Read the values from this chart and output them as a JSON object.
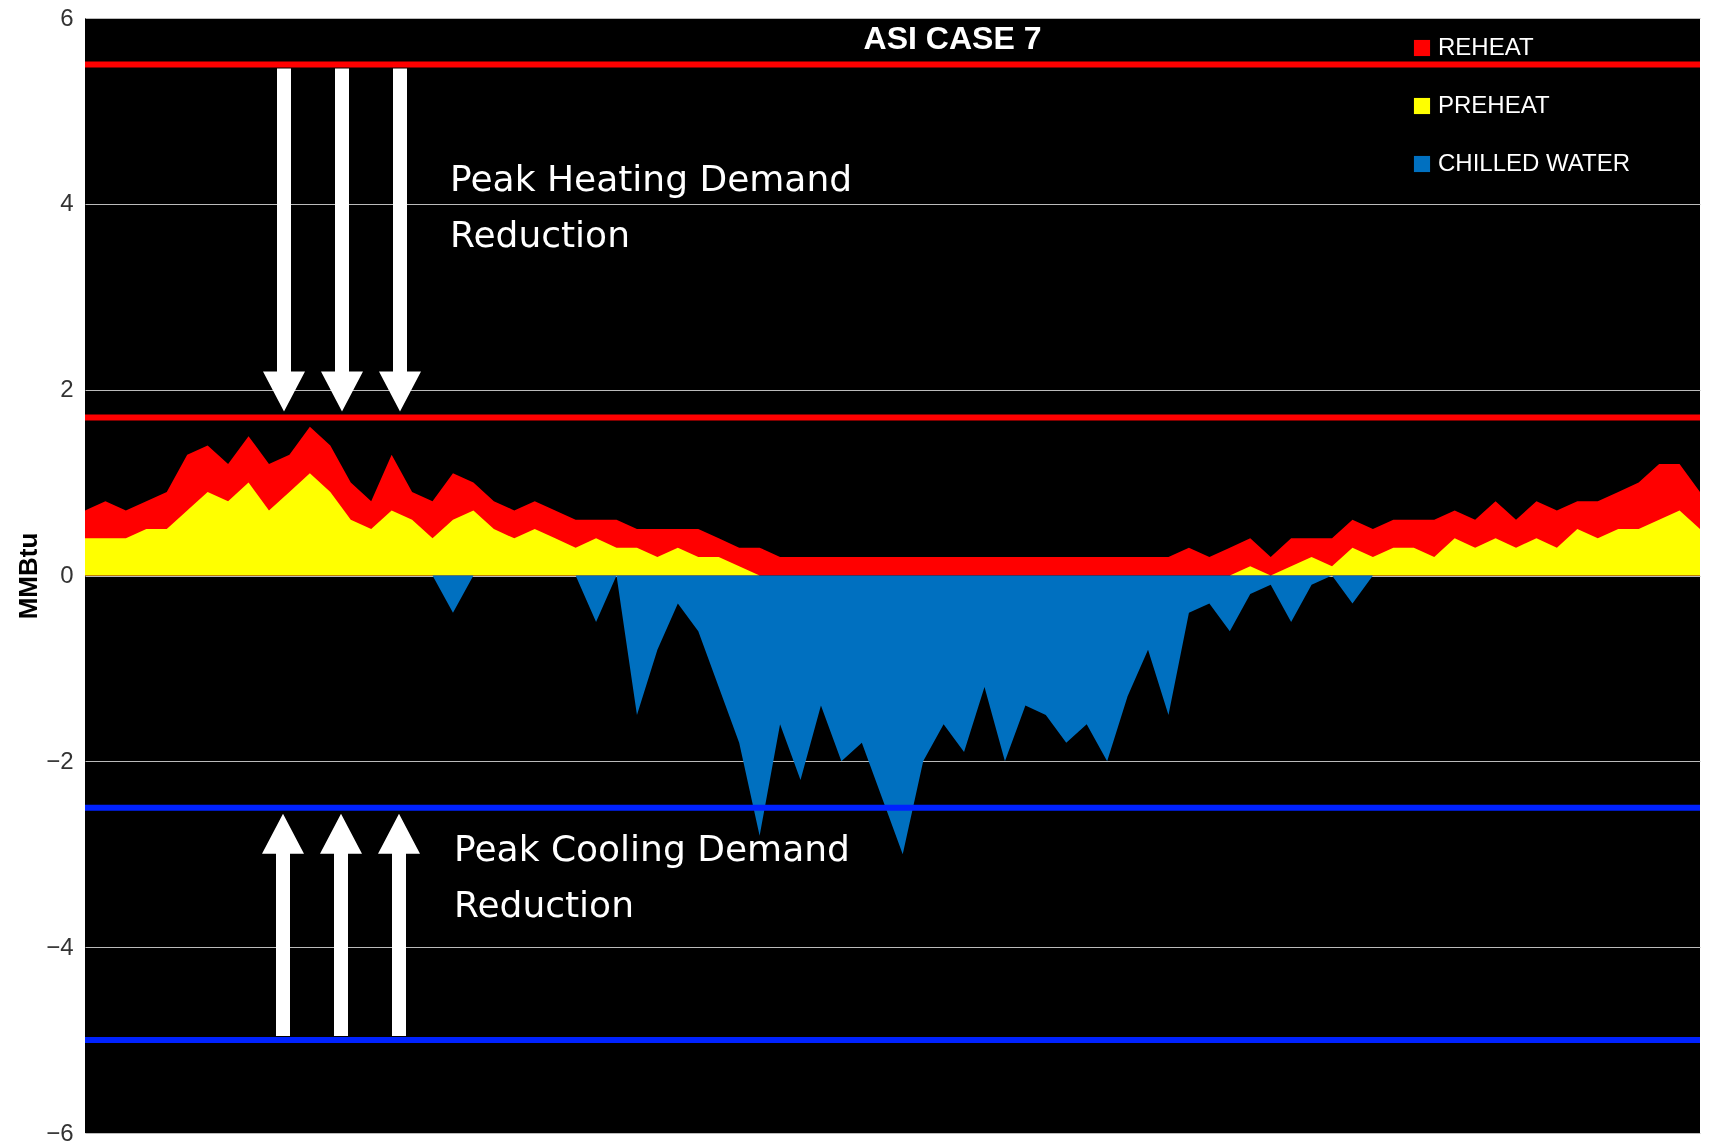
{
  "chart_data": {
    "type": "area",
    "title": "ASI CASE 7",
    "ylabel": "MMBtu",
    "grid": "y",
    "legend": "top right",
    "tick_labels": "y",
    "ylim": [
      -6,
      6
    ],
    "yticks": [
      -6,
      -4,
      -2,
      0,
      2,
      4,
      6
    ],
    "categories": [
      null,
      null,
      null,
      null,
      null,
      null,
      null,
      null,
      null,
      null,
      null,
      null,
      null,
      null,
      null,
      null,
      null,
      null,
      null,
      null,
      null,
      null,
      null,
      null,
      null,
      null,
      null,
      null,
      null,
      null,
      null,
      null,
      null,
      null,
      null,
      null,
      null,
      null,
      null,
      null,
      null,
      null,
      null,
      null,
      null,
      null,
      null,
      null,
      null,
      null,
      null,
      null,
      null,
      null,
      null,
      null,
      null,
      null,
      null,
      null,
      null,
      null,
      null,
      null,
      null,
      null,
      null,
      null,
      null,
      null,
      null,
      null,
      null,
      null,
      null,
      null,
      null,
      null,
      null,
      null
    ],
    "series": [
      {
        "name": "REHEAT",
        "color": "#ff0000",
        "values": [
          0.7,
          0.8,
          0.7,
          0.8,
          0.9,
          1.3,
          1.4,
          1.2,
          1.5,
          1.2,
          1.3,
          1.6,
          1.4,
          1.0,
          0.8,
          1.3,
          0.9,
          0.8,
          1.1,
          1.0,
          0.8,
          0.7,
          0.8,
          0.7,
          0.6,
          0.6,
          0.6,
          0.5,
          0.5,
          0.5,
          0.5,
          0.4,
          0.3,
          0.3,
          0.2,
          0.2,
          0.2,
          0.2,
          0.2,
          0.2,
          0.2,
          0.2,
          0.2,
          0.2,
          0.2,
          0.2,
          0.2,
          0.2,
          0.2,
          0.2,
          0.2,
          0.2,
          0.2,
          0.2,
          0.3,
          0.2,
          0.3,
          0.4,
          0.2,
          0.4,
          0.4,
          0.4,
          0.6,
          0.5,
          0.6,
          0.6,
          0.6,
          0.7,
          0.6,
          0.8,
          0.6,
          0.8,
          0.7,
          0.8,
          0.8,
          0.9,
          1.0,
          1.2,
          1.2,
          0.9
        ]
      },
      {
        "name": "PREHEAT",
        "color": "#ffff00",
        "values": [
          0.4,
          0.4,
          0.4,
          0.5,
          0.5,
          0.7,
          0.9,
          0.8,
          1.0,
          0.7,
          0.9,
          1.1,
          0.9,
          0.6,
          0.5,
          0.7,
          0.6,
          0.4,
          0.6,
          0.7,
          0.5,
          0.4,
          0.5,
          0.4,
          0.3,
          0.4,
          0.3,
          0.3,
          0.2,
          0.3,
          0.2,
          0.2,
          0.1,
          0,
          0,
          0,
          0,
          0,
          0,
          0,
          0,
          0,
          0,
          0,
          0,
          0,
          0,
          0,
          0,
          0,
          0,
          0,
          0,
          0,
          0,
          0,
          0,
          0.1,
          0,
          0.1,
          0.2,
          0.1,
          0.3,
          0.2,
          0.3,
          0.3,
          0.2,
          0.4,
          0.3,
          0.4,
          0.3,
          0.4,
          0.3,
          0.5,
          0.4,
          0.5,
          0.5,
          0.6,
          0.7,
          0.5
        ]
      },
      {
        "name": "CHILLED WATER",
        "color": "#0070c0",
        "values": [
          0,
          0,
          0,
          0,
          0,
          0,
          0,
          0,
          0,
          0,
          0,
          0,
          0,
          0,
          0,
          0,
          0,
          0,
          -0.4,
          0,
          0,
          0,
          0,
          0,
          0,
          -0.5,
          0,
          -1.5,
          -0.8,
          -0.3,
          -0.6,
          -1.2,
          -1.8,
          -2.8,
          -1.6,
          -2.2,
          -1.4,
          -2.0,
          -1.8,
          -2.4,
          -3.0,
          -2.0,
          -1.6,
          -1.9,
          -1.2,
          -2.0,
          -1.4,
          -1.5,
          -1.8,
          -1.6,
          -2.0,
          -1.3,
          -0.8,
          -1.5,
          -0.4,
          -0.3,
          -0.6,
          -0.2,
          -0.1,
          -0.5,
          -0.1,
          0,
          -0.3,
          0,
          0,
          0,
          0,
          0,
          0,
          0,
          0,
          0,
          0,
          0,
          0,
          0,
          0,
          0,
          0,
          0
        ]
      }
    ],
    "ref_lines": [
      {
        "axis": "y",
        "value": 5.5,
        "color": "#ff0000"
      },
      {
        "axis": "y",
        "value": 1.7,
        "color": "#ff0000"
      },
      {
        "axis": "y",
        "value": -2.5,
        "color": "#0022ff"
      },
      {
        "axis": "y",
        "value": -5.0,
        "color": "#0022ff"
      }
    ],
    "annotations": [
      "Peak Heating Demand Reduction",
      "Peak Cooling Demand Reduction"
    ]
  }
}
